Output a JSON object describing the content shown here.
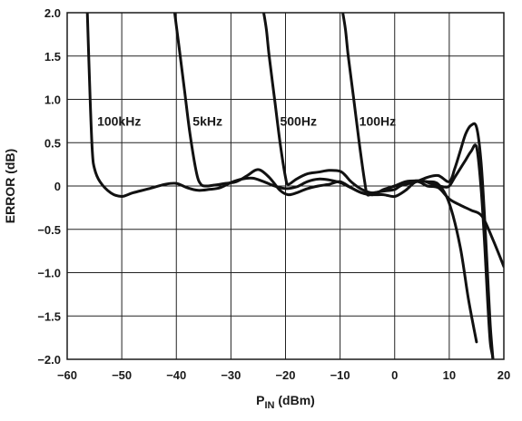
{
  "chart_data": {
    "type": "line",
    "title": "",
    "xlabel_main": "P",
    "xlabel_sub": "IN",
    "xlabel_rest": " (dBm)",
    "ylabel": "ERROR (dB)",
    "xlim": [
      -60,
      20
    ],
    "ylim": [
      -2.0,
      2.0
    ],
    "grid": true,
    "x_ticks": [
      -60,
      -50,
      -40,
      -30,
      -20,
      -10,
      0,
      10,
      20
    ],
    "x_tick_labels": [
      "−60",
      "−50",
      "−40",
      "−30",
      "−20",
      "−10",
      "0",
      "10",
      "20"
    ],
    "y_ticks": [
      2.0,
      1.5,
      1.0,
      0.5,
      0,
      -0.5,
      -1.0,
      -1.5,
      -2.0
    ],
    "y_tick_labels": [
      "2.0",
      "1.5",
      "1.0",
      "0.5",
      "0",
      "−0.5",
      "−1.0",
      "−1.5",
      "−2.0"
    ],
    "annotations": [
      {
        "text": "100kHz",
        "x": -54.5,
        "y": 0.75
      },
      {
        "text": "5kHz",
        "x": -37.0,
        "y": 0.75
      },
      {
        "text": "500Hz",
        "x": -21.0,
        "y": 0.75
      },
      {
        "text": "100Hz",
        "x": -6.5,
        "y": 0.75
      }
    ],
    "series": [
      {
        "label": "100kHz",
        "x": [
          -56.3,
          -55.8,
          -55.4,
          -55.0,
          -54.0,
          -52.0,
          -50.0,
          -48.0,
          -45.0,
          -42.0,
          -40.0,
          -38.0,
          -36.0,
          -34.0,
          -32.0,
          -30.0,
          -28.0,
          -26.0,
          -24.0,
          -22.0,
          -20.0,
          -18.0,
          -16.0,
          -14.0,
          -12.0,
          -10.0,
          -8.0,
          -6.0,
          -4.0,
          -2.0,
          0.0,
          2.0,
          4.0,
          6.0,
          8.0,
          10.0,
          12.0,
          14.0,
          16.0,
          18.0,
          20.0
        ],
        "y": [
          2.0,
          1.0,
          0.4,
          0.2,
          0.05,
          -0.08,
          -0.12,
          -0.08,
          -0.03,
          0.02,
          0.03,
          -0.02,
          -0.05,
          -0.04,
          -0.02,
          0.04,
          0.08,
          0.09,
          0.05,
          0.0,
          -0.03,
          -0.01,
          0.05,
          0.08,
          0.07,
          0.04,
          -0.02,
          -0.08,
          -0.1,
          -0.1,
          -0.12,
          -0.05,
          0.05,
          0.0,
          -0.02,
          -0.15,
          -0.22,
          -0.28,
          -0.35,
          -0.62,
          -0.93
        ]
      },
      {
        "label": "5kHz",
        "x": [
          -40.3,
          -39.5,
          -38.5,
          -37.5,
          -36.3,
          -35.5,
          -34.5,
          -33.0,
          -31.0,
          -29.0,
          -27.0,
          -25.0,
          -23.0,
          -21.0,
          -19.5,
          -18.0,
          -16.0,
          -14.0,
          -12.0,
          -10.0,
          -8.0,
          -6.0,
          -4.0,
          -2.0,
          0.0,
          2.0,
          4.0,
          6.0,
          8.0,
          10.0,
          12.0,
          13.5,
          15.0
        ],
        "y": [
          2.0,
          1.6,
          1.1,
          0.6,
          0.15,
          0.02,
          0.0,
          0.01,
          0.03,
          0.05,
          0.12,
          0.19,
          0.1,
          -0.05,
          -0.1,
          -0.08,
          -0.03,
          0.0,
          0.02,
          0.05,
          -0.02,
          -0.08,
          -0.1,
          -0.04,
          0.0,
          0.05,
          0.06,
          0.05,
          0.02,
          -0.2,
          -0.7,
          -1.3,
          -1.8
        ]
      },
      {
        "label": "500Hz",
        "x": [
          -24.0,
          -23.5,
          -23.0,
          -22.0,
          -21.0,
          -20.0,
          -19.5,
          -18.0,
          -16.0,
          -14.0,
          -12.0,
          -10.0,
          -9.0,
          -8.0,
          -6.0,
          -4.0,
          -2.0,
          0.0,
          2.0,
          4.0,
          6.0,
          8.0,
          10.0,
          11.0,
          12.0,
          13.0,
          14.0,
          15.0,
          15.8,
          16.5,
          17.0,
          17.5,
          18.0,
          18.5
        ],
        "y": [
          2.0,
          1.8,
          1.5,
          1.0,
          0.5,
          0.1,
          0.02,
          0.08,
          0.14,
          0.16,
          0.18,
          0.17,
          0.12,
          0.05,
          -0.04,
          -0.08,
          -0.05,
          0.0,
          0.02,
          0.05,
          0.1,
          0.12,
          0.05,
          0.2,
          0.4,
          0.6,
          0.7,
          0.68,
          0.3,
          -0.4,
          -1.0,
          -1.6,
          -2.0,
          -2.4
        ]
      },
      {
        "label": "100Hz",
        "x": [
          -9.5,
          -9.0,
          -8.5,
          -7.5,
          -6.5,
          -5.5,
          -5.0,
          -4.0,
          -2.0,
          0.0,
          1.0,
          3.0,
          5.0,
          7.0,
          9.0,
          10.0,
          11.0,
          12.0,
          13.0,
          14.0,
          15.0,
          15.8,
          16.5,
          17.0,
          17.5,
          18.0,
          18.5
        ],
        "y": [
          2.0,
          1.8,
          1.5,
          1.0,
          0.5,
          0.05,
          -0.1,
          -0.08,
          -0.06,
          -0.04,
          0.0,
          0.05,
          0.06,
          0.02,
          -0.01,
          0.0,
          0.1,
          0.2,
          0.3,
          0.4,
          0.45,
          0.0,
          -0.7,
          -1.3,
          -1.8,
          -2.0,
          -2.4
        ]
      }
    ]
  }
}
